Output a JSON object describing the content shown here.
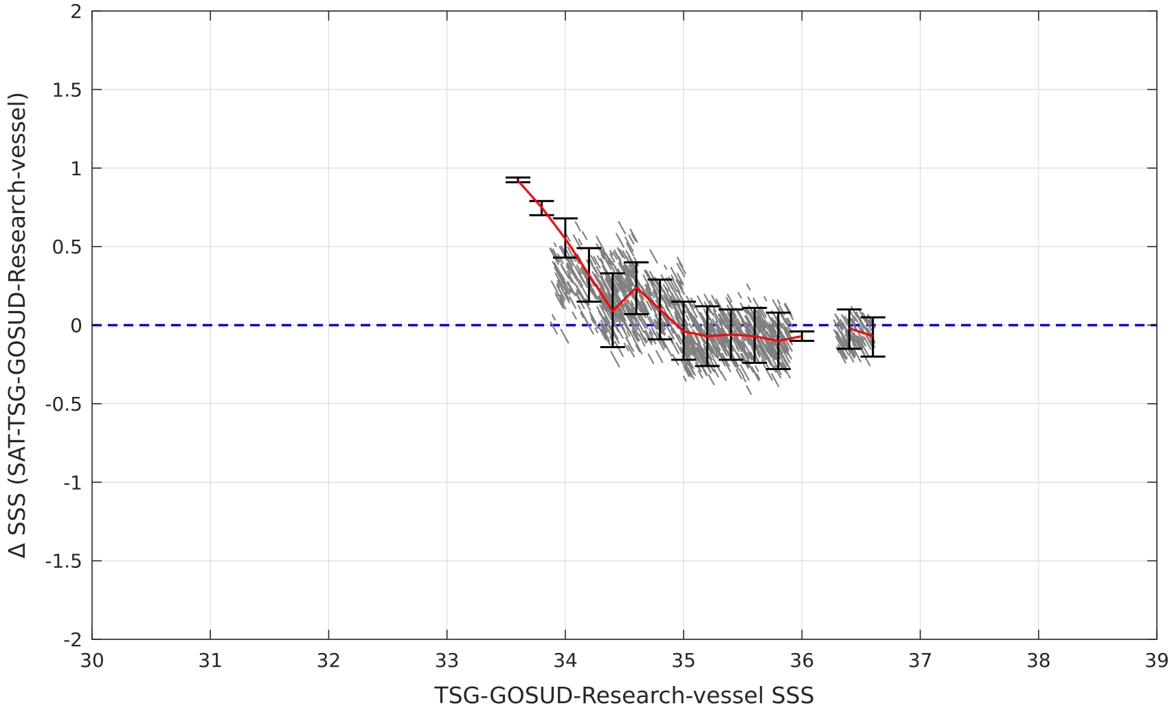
{
  "chart_data": {
    "type": "scatter",
    "title": "",
    "xlabel": "TSG-GOSUD-Research-vessel SSS",
    "ylabel": "Δ SSS (SAT-TSG-GOSUD-Research-vessel)",
    "xlim": [
      30,
      39
    ],
    "ylim": [
      -2,
      2
    ],
    "xticks": [
      30,
      31,
      32,
      33,
      34,
      35,
      36,
      37,
      38,
      39
    ],
    "yticks": [
      -2,
      -1.5,
      -1,
      -0.5,
      0,
      0.5,
      1,
      1.5,
      2
    ],
    "xtick_labels": [
      "30",
      "31",
      "32",
      "33",
      "34",
      "35",
      "36",
      "37",
      "38",
      "39"
    ],
    "ytick_labels": [
      "-2",
      "-1.5",
      "-1",
      "-0.5",
      "0",
      "0.5",
      "1",
      "1.5",
      "2"
    ],
    "grid": true,
    "reference_line": {
      "y": 0,
      "style": "dashed",
      "color": "#0000e0"
    },
    "scatter_color": "#808080",
    "scatter_clusters": [
      {
        "x_range": [
          33.9,
          34.6
        ],
        "center_y": 0.28,
        "spread": 0.28,
        "n": 260
      },
      {
        "x_range": [
          34.3,
          35.0
        ],
        "center_y": 0.1,
        "spread": 0.28,
        "n": 320
      },
      {
        "x_range": [
          35.0,
          35.9
        ],
        "center_y": -0.08,
        "spread": 0.22,
        "n": 520
      },
      {
        "x_range": [
          36.3,
          36.6
        ],
        "center_y": -0.06,
        "spread": 0.15,
        "n": 110
      }
    ],
    "binned_mean": {
      "name": "",
      "color": "#ff0000",
      "x": [
        33.6,
        33.8,
        34.0,
        34.2,
        34.4,
        34.6,
        34.8,
        35.0,
        35.2,
        35.4,
        35.6,
        35.8,
        36.0,
        36.4,
        36.6
      ],
      "mean": [
        0.92,
        0.75,
        0.55,
        0.32,
        0.09,
        0.24,
        0.1,
        -0.04,
        -0.07,
        -0.06,
        -0.07,
        -0.1,
        -0.07,
        -0.02,
        -0.07
      ],
      "lower": [
        0.91,
        0.7,
        0.43,
        0.15,
        -0.14,
        0.07,
        -0.09,
        -0.22,
        -0.26,
        -0.22,
        -0.24,
        -0.28,
        -0.1,
        -0.15,
        -0.2
      ],
      "upper": [
        0.94,
        0.79,
        0.68,
        0.49,
        0.33,
        0.4,
        0.29,
        0.15,
        0.12,
        0.1,
        0.11,
        0.08,
        -0.04,
        0.1,
        0.05
      ]
    },
    "mean_line_segments": [
      [
        0,
        12
      ],
      [
        13,
        14
      ]
    ]
  }
}
